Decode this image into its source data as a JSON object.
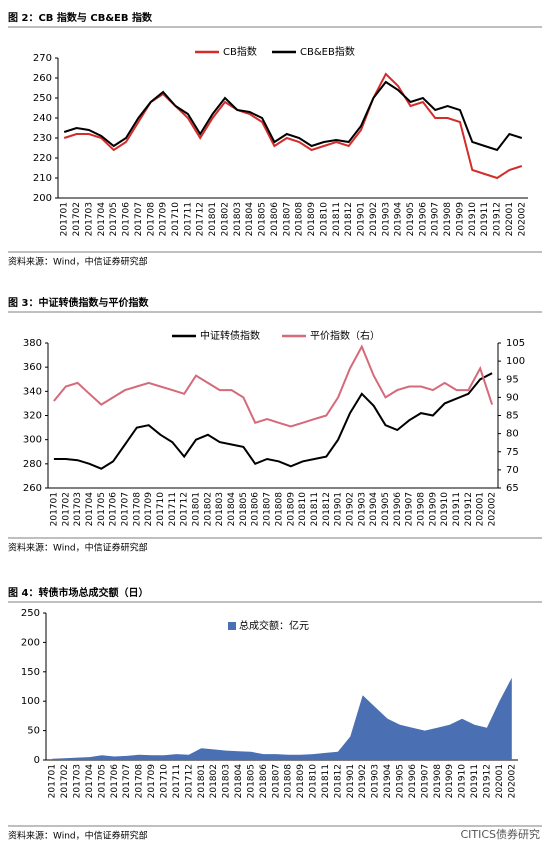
{
  "chart_data": [
    {
      "type": "line",
      "title": "图 2：CB 指数与 CB&EB 指数",
      "source": "资料来源：Wind，中信证券研究部",
      "categories": [
        "201701",
        "201702",
        "201703",
        "201704",
        "201705",
        "201706",
        "201707",
        "201708",
        "201709",
        "201710",
        "201711",
        "201712",
        "201801",
        "201802",
        "201803",
        "201804",
        "201805",
        "201806",
        "201807",
        "201808",
        "201809",
        "201810",
        "201811",
        "201812",
        "201901",
        "201902",
        "201903",
        "201904",
        "201905",
        "201906",
        "201907",
        "201908",
        "201909",
        "201910",
        "201911",
        "201912",
        "202001",
        "202002"
      ],
      "ylim": [
        200,
        270
      ],
      "yticks": [
        200,
        210,
        220,
        230,
        240,
        250,
        260,
        270
      ],
      "series": [
        {
          "name": "CB指数",
          "color": "#d42b2b",
          "values": [
            230,
            232,
            232,
            230,
            224,
            228,
            238,
            248,
            252,
            246,
            240,
            230,
            240,
            248,
            244,
            242,
            238,
            226,
            230,
            228,
            224,
            226,
            228,
            226,
            234,
            250,
            262,
            256,
            246,
            248,
            240,
            240,
            238,
            214,
            212,
            210,
            214,
            216
          ]
        },
        {
          "name": "CB&EB指数",
          "color": "#000000",
          "values": [
            233,
            235,
            234,
            231,
            226,
            230,
            240,
            248,
            253,
            246,
            242,
            232,
            242,
            250,
            244,
            243,
            240,
            228,
            232,
            230,
            226,
            228,
            229,
            228,
            236,
            250,
            258,
            254,
            248,
            250,
            244,
            246,
            244,
            228,
            226,
            224,
            232,
            230
          ]
        }
      ]
    },
    {
      "type": "line",
      "title": "图 3：中证转债指数与平价指数",
      "source": "资料来源：Wind，中信证券研究部",
      "categories": [
        "201701",
        "201702",
        "201703",
        "201704",
        "201705",
        "201706",
        "201707",
        "201708",
        "201709",
        "201710",
        "201711",
        "201712",
        "201801",
        "201802",
        "201803",
        "201804",
        "201805",
        "201806",
        "201807",
        "201808",
        "201809",
        "201810",
        "201811",
        "201812",
        "201901",
        "201902",
        "201903",
        "201904",
        "201905",
        "201906",
        "201907",
        "201908",
        "201909",
        "201910",
        "201911",
        "201912",
        "202001",
        "202002"
      ],
      "ylim": [
        260,
        380
      ],
      "yticks": [
        260,
        280,
        300,
        320,
        340,
        360,
        380
      ],
      "y2lim": [
        65,
        105
      ],
      "y2ticks": [
        65,
        70,
        75,
        80,
        85,
        90,
        95,
        100,
        105
      ],
      "series": [
        {
          "name": "中证转债指数",
          "color": "#000000",
          "values": [
            284,
            284,
            283,
            280,
            276,
            282,
            296,
            310,
            312,
            304,
            298,
            286,
            300,
            304,
            298,
            296,
            294,
            280,
            284,
            282,
            278,
            282,
            284,
            286,
            300,
            322,
            338,
            328,
            312,
            308,
            316,
            322,
            320,
            330,
            334,
            338,
            350,
            355
          ]
        },
        {
          "name": "平价指数（右）",
          "color": "#d46a7a",
          "axis": "y2",
          "values": [
            89,
            93,
            94,
            91,
            88,
            90,
            92,
            93,
            94,
            93,
            92,
            91,
            96,
            94,
            92,
            92,
            90,
            83,
            84,
            83,
            82,
            83,
            84,
            85,
            90,
            98,
            104,
            96,
            90,
            92,
            93,
            93,
            92,
            94,
            92,
            92,
            98,
            88
          ]
        }
      ]
    },
    {
      "type": "area",
      "title": "图 4：转债市场总成交额（日）",
      "source": "资料来源：Wind，中信证券研究部",
      "categories": [
        "201701",
        "201702",
        "201703",
        "201704",
        "201705",
        "201706",
        "201707",
        "201708",
        "201709",
        "201710",
        "201711",
        "201712",
        "201801",
        "201802",
        "201803",
        "201804",
        "201805",
        "201806",
        "201807",
        "201808",
        "201809",
        "201810",
        "201811",
        "201812",
        "201901",
        "201902",
        "201903",
        "201904",
        "201905",
        "201906",
        "201907",
        "201908",
        "201909",
        "201910",
        "201911",
        "201912",
        "202001",
        "202002"
      ],
      "ylim": [
        0,
        250
      ],
      "yticks": [
        0,
        50,
        100,
        150,
        200,
        250
      ],
      "series": [
        {
          "name": "总成交额：亿元",
          "color": "#4a6fb3",
          "values": [
            2,
            3,
            4,
            5,
            8,
            6,
            7,
            9,
            8,
            8,
            10,
            9,
            20,
            18,
            16,
            15,
            14,
            10,
            10,
            9,
            9,
            10,
            12,
            14,
            40,
            110,
            90,
            70,
            60,
            55,
            50,
            55,
            60,
            70,
            60,
            55,
            100,
            140
          ]
        }
      ]
    }
  ],
  "watermark": "CITICS债券研究"
}
